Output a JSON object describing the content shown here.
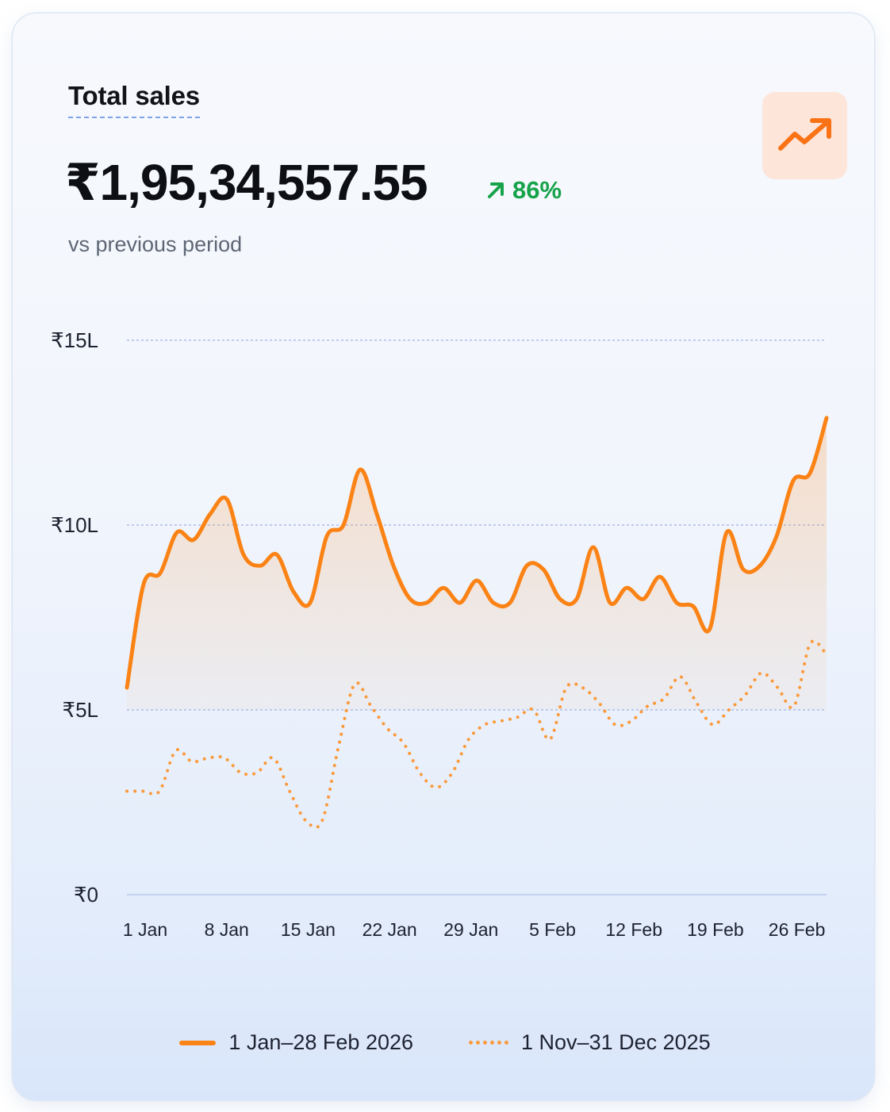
{
  "header": {
    "title": "Total sales",
    "total": "₹1,95,34,557.55",
    "change": "86%",
    "change_icon": "arrow-up-right-icon",
    "subtitle": "vs previous period",
    "badge_icon": "trend-up-icon"
  },
  "colors": {
    "current": "#fb8316",
    "previous": "#fb9a3c",
    "positive": "#16a34a",
    "grid": "#9db5e6"
  },
  "legend": {
    "current_label": "1 Jan–28 Feb 2026",
    "previous_label": "1 Nov–31 Dec 2025"
  },
  "chart_data": {
    "type": "area",
    "y_unit": "₹ lakh",
    "ylim": [
      0,
      15
    ],
    "y_ticks": [
      {
        "value": 0,
        "label": "₹0"
      },
      {
        "value": 5,
        "label": "₹5L"
      },
      {
        "value": 10,
        "label": "₹10L"
      },
      {
        "value": 15,
        "label": "₹15L"
      }
    ],
    "x_tick_labels": [
      "1 Jan",
      "8 Jan",
      "15 Jan",
      "22 Jan",
      "29 Jan",
      "5 Feb",
      "12 Feb",
      "19 Feb",
      "26 Feb"
    ],
    "grid": true,
    "legend_position": "bottom",
    "series": [
      {
        "name": "1 Jan–28 Feb 2026",
        "style": "solid-area",
        "values": [
          5.6,
          8.4,
          8.7,
          9.8,
          9.6,
          10.3,
          10.7,
          9.2,
          8.9,
          9.2,
          8.2,
          7.9,
          9.7,
          10.0,
          11.5,
          10.3,
          8.9,
          8.0,
          7.9,
          8.3,
          7.9,
          8.5,
          7.9,
          7.9,
          8.9,
          8.8,
          8.0,
          8.0,
          9.4,
          7.9,
          8.3,
          8.0,
          8.6,
          7.9,
          7.8,
          7.2,
          9.8,
          8.8,
          8.9,
          9.7,
          11.2,
          11.4,
          12.9
        ]
      },
      {
        "name": "1 Nov–31 Dec 2025",
        "style": "dotted",
        "values": [
          2.8,
          2.8,
          2.8,
          3.9,
          3.6,
          3.7,
          3.7,
          3.3,
          3.3,
          3.7,
          2.8,
          2.0,
          2.0,
          4.0,
          5.7,
          5.1,
          4.5,
          4.1,
          3.3,
          2.9,
          3.3,
          4.2,
          4.6,
          4.7,
          4.8,
          5.0,
          4.2,
          5.6,
          5.6,
          5.2,
          4.6,
          4.7,
          5.1,
          5.3,
          5.9,
          5.2,
          4.6,
          5.0,
          5.4,
          6.0,
          5.6,
          5.1,
          6.8,
          6.5
        ]
      }
    ]
  }
}
